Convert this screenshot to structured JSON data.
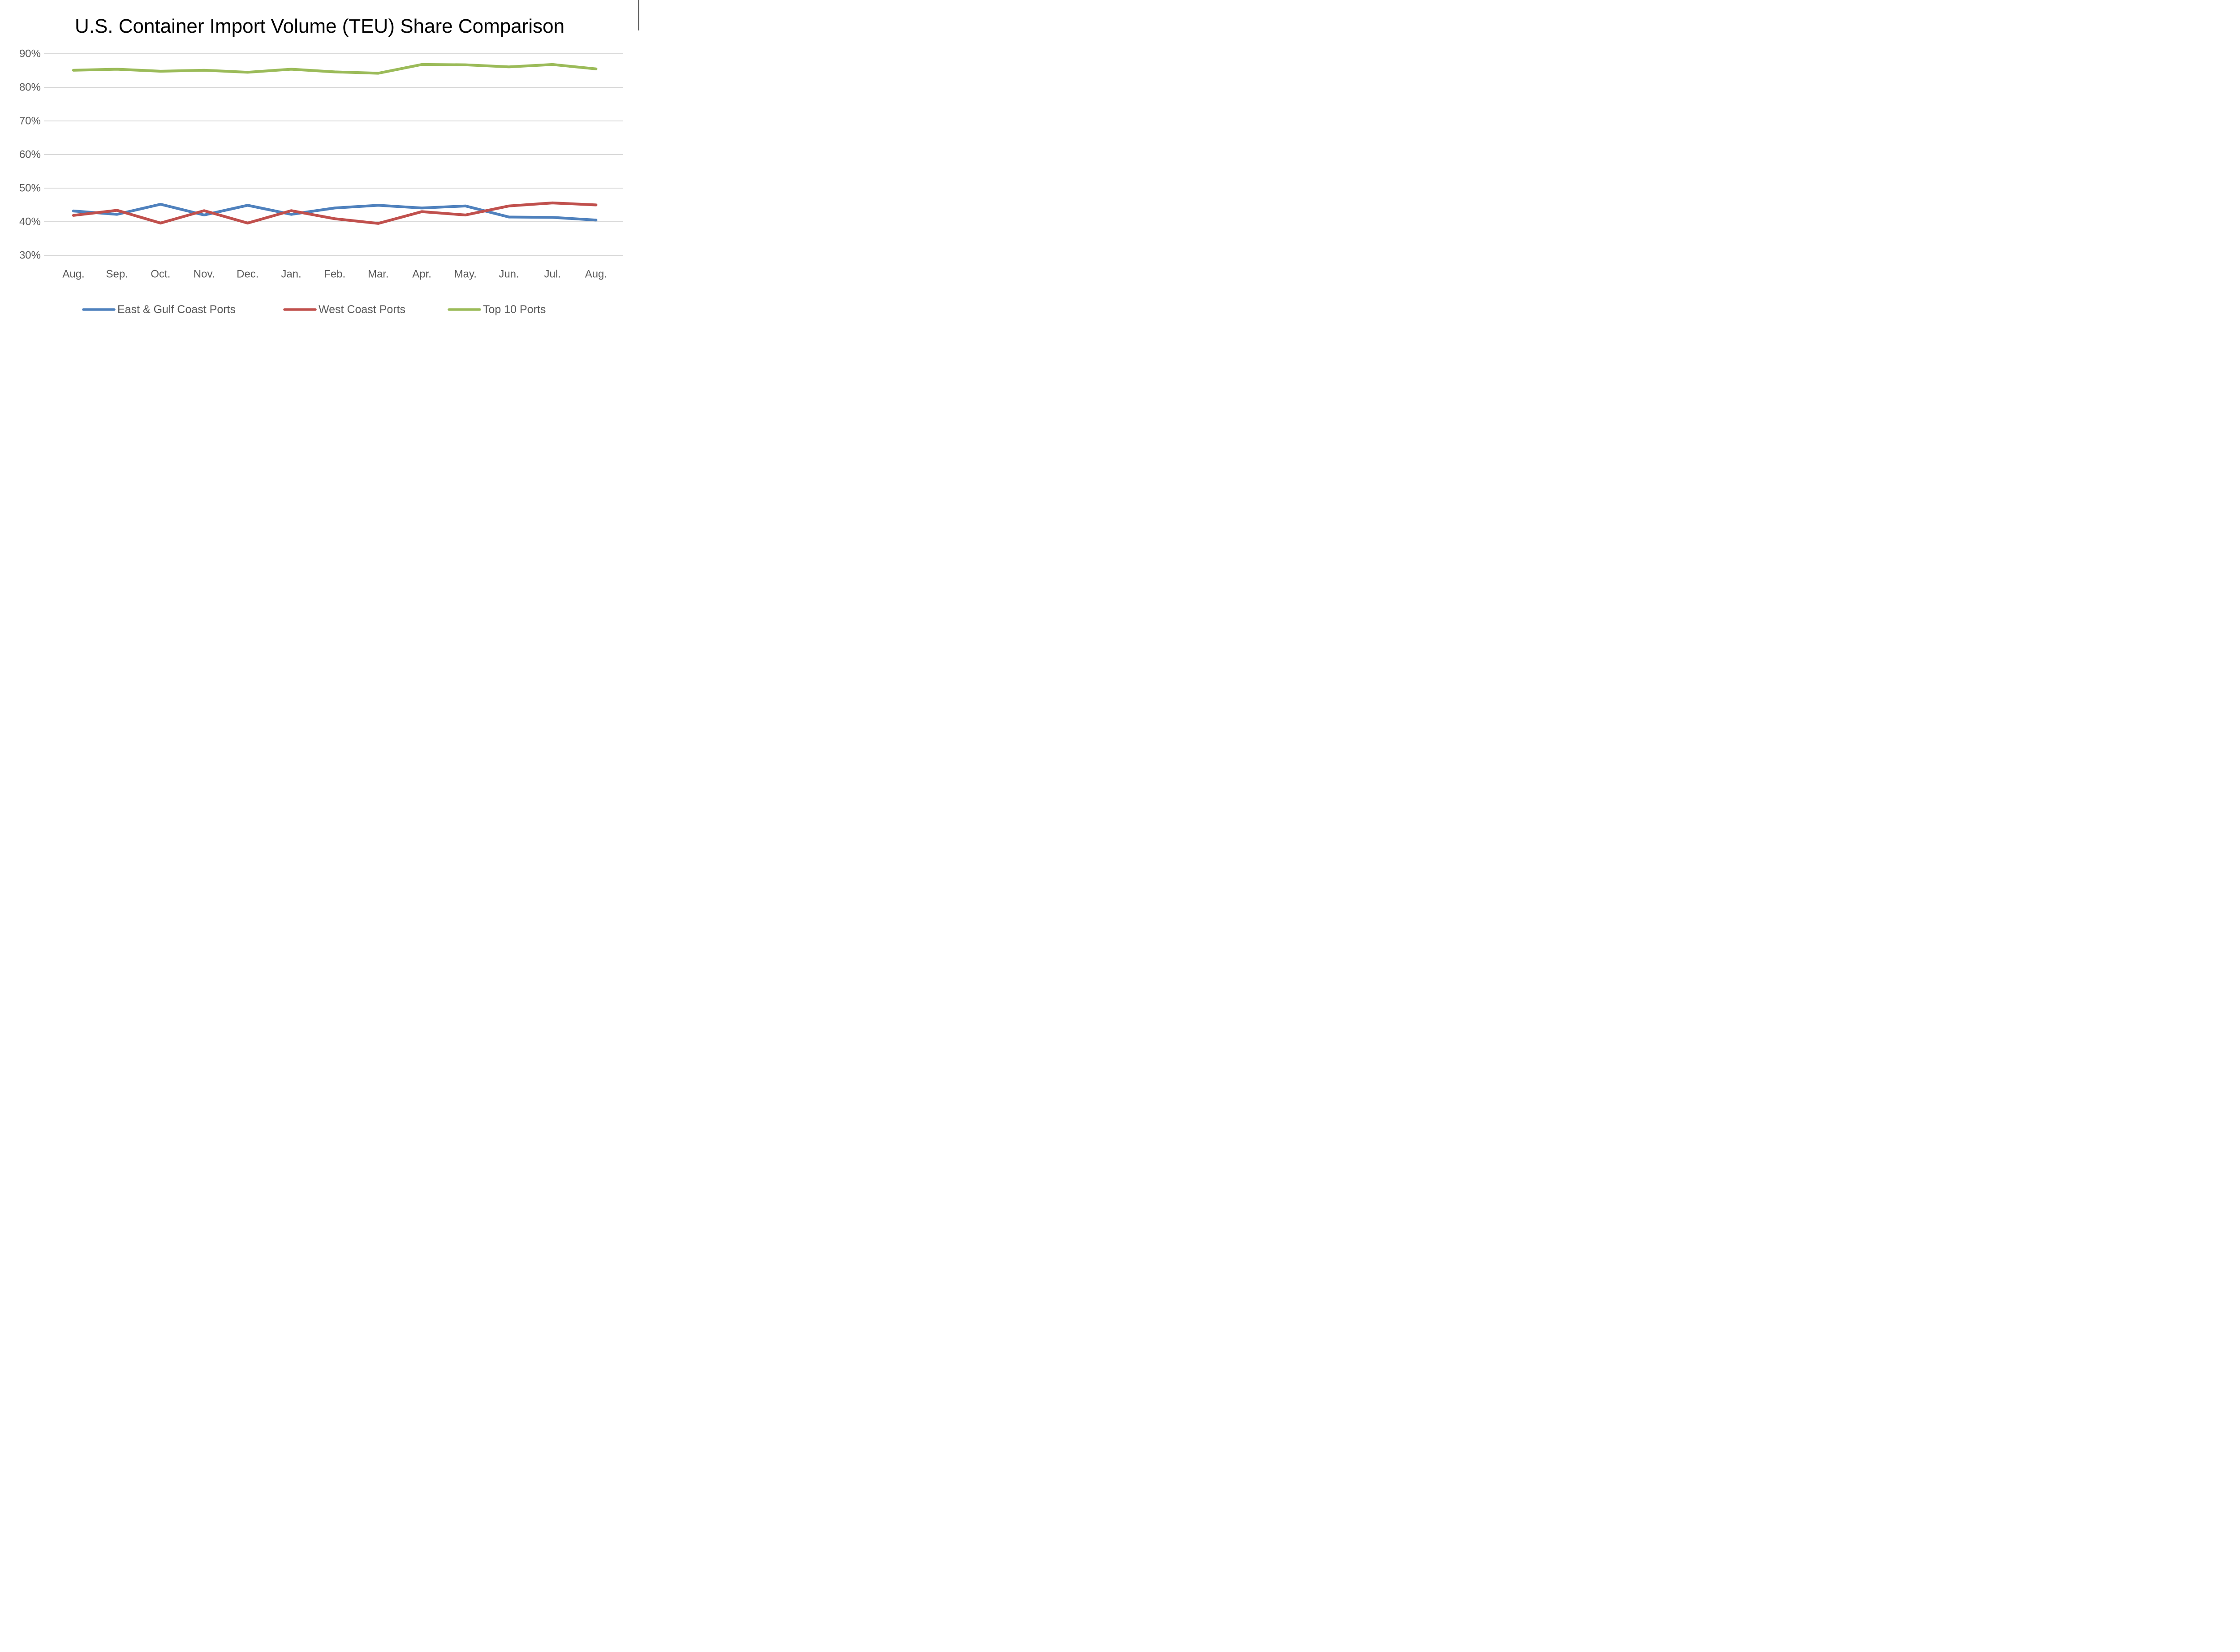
{
  "chart_data": {
    "type": "line",
    "title": "U.S. Container Import Volume (TEU) Share Comparison",
    "categories": [
      "Aug.",
      "Sep.",
      "Oct.",
      "Nov.",
      "Dec.",
      "Jan.",
      "Feb.",
      "Mar.",
      "Apr.",
      "May.",
      "Jun.",
      "Jul.",
      "Aug."
    ],
    "series": [
      {
        "name": "East & Gulf Coast Ports",
        "color": "#4F81BD",
        "values": [
          43.2,
          42.2,
          45.2,
          42.0,
          44.9,
          42.2,
          44.1,
          44.9,
          44.1,
          44.7,
          41.4,
          41.3,
          40.5
        ]
      },
      {
        "name": "West Coast Ports",
        "color": "#C0504D",
        "values": [
          41.9,
          43.4,
          39.6,
          43.3,
          39.6,
          43.3,
          40.9,
          39.5,
          43.0,
          42.0,
          44.7,
          45.6,
          45.0
        ]
      },
      {
        "name": "Top 10 Ports",
        "color": "#9BBB59",
        "values": [
          85.1,
          85.4,
          84.8,
          85.1,
          84.5,
          85.4,
          84.6,
          84.2,
          86.8,
          86.7,
          86.1,
          86.8,
          85.5
        ]
      }
    ],
    "y_ticks": [
      {
        "value": 90,
        "label": "90%"
      },
      {
        "value": 80,
        "label": "80%"
      },
      {
        "value": 70,
        "label": "70%"
      },
      {
        "value": 60,
        "label": "60%"
      },
      {
        "value": 50,
        "label": "50%"
      },
      {
        "value": 40,
        "label": "40%"
      },
      {
        "value": 30,
        "label": "30%"
      }
    ],
    "ylim": [
      30,
      90
    ],
    "unit": "%",
    "grid": true,
    "legend_position": "bottom"
  }
}
